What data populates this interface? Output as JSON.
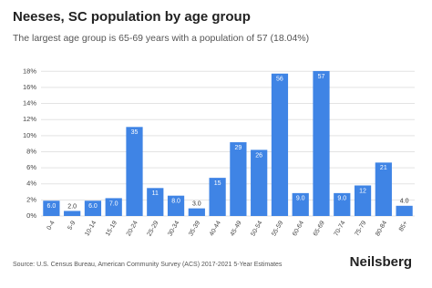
{
  "chart_data": {
    "type": "bar",
    "title": "Neeses, SC population by age group",
    "subtitle": "The largest age group is 65-69 years with a population of 57 (18.04%)",
    "categories": [
      "0-4",
      "5-9",
      "10-14",
      "15-19",
      "20-24",
      "25-29",
      "30-34",
      "35-39",
      "40-44",
      "45-49",
      "50-54",
      "55-59",
      "60-64",
      "65-69",
      "70-74",
      "75-79",
      "80-84",
      "85+"
    ],
    "values": [
      1.9,
      0.63,
      1.9,
      2.22,
      11.08,
      3.48,
      2.53,
      0.95,
      4.75,
      9.18,
      8.23,
      17.72,
      2.85,
      18.04,
      2.85,
      3.8,
      6.65,
      1.27
    ],
    "population_labels": [
      "6.0",
      "2.0",
      "6.0",
      "7.0",
      "35",
      "11",
      "8.0",
      "3.0",
      "15",
      "29",
      "26",
      "56",
      "9.0",
      "57",
      "9.0",
      "12",
      "21",
      "4.0"
    ],
    "color": "#3f84e5",
    "ylim": [
      0,
      18.6
    ],
    "yticks": [
      {
        "value": 0,
        "label": "0%"
      },
      {
        "value": 2,
        "label": "2%"
      },
      {
        "value": 4,
        "label": "4%"
      },
      {
        "value": 6,
        "label": "6%"
      },
      {
        "value": 8,
        "label": "8%"
      },
      {
        "value": 10,
        "label": "10%"
      },
      {
        "value": 12,
        "label": "12%"
      },
      {
        "value": 14,
        "label": "14%"
      },
      {
        "value": 16,
        "label": "16%"
      },
      {
        "value": 18,
        "label": "18%"
      }
    ],
    "grid": true,
    "source": "Source: U.S. Census Bureau, American Community Survey (ACS) 2017-2021 5-Year Estimates",
    "brand": "Neilsberg"
  }
}
